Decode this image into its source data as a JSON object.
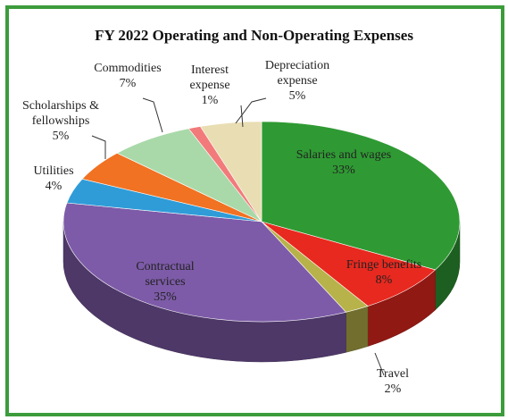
{
  "chart_data": {
    "type": "pie3d",
    "title": "FY 2022 Operating and Non-Operating Expenses",
    "categories": [
      "Salaries and wages",
      "Fringe benefits",
      "Travel",
      "Contractual services",
      "Utilities",
      "Scholarships & fellowships",
      "Commodities",
      "Interest expense",
      "Depreciation expense"
    ],
    "values": [
      33,
      8,
      2,
      35,
      4,
      5,
      7,
      1,
      5
    ],
    "value_labels": [
      "33%",
      "8%",
      "2%",
      "35%",
      "4%",
      "5%",
      "7%",
      "1%",
      "5%"
    ],
    "colors": [
      "#2f9a33",
      "#e8291f",
      "#b7b24a",
      "#7d5ba8",
      "#2f9cd8",
      "#f07222",
      "#a9d9a9",
      "#f27a7a",
      "#e9ddb3"
    ]
  }
}
